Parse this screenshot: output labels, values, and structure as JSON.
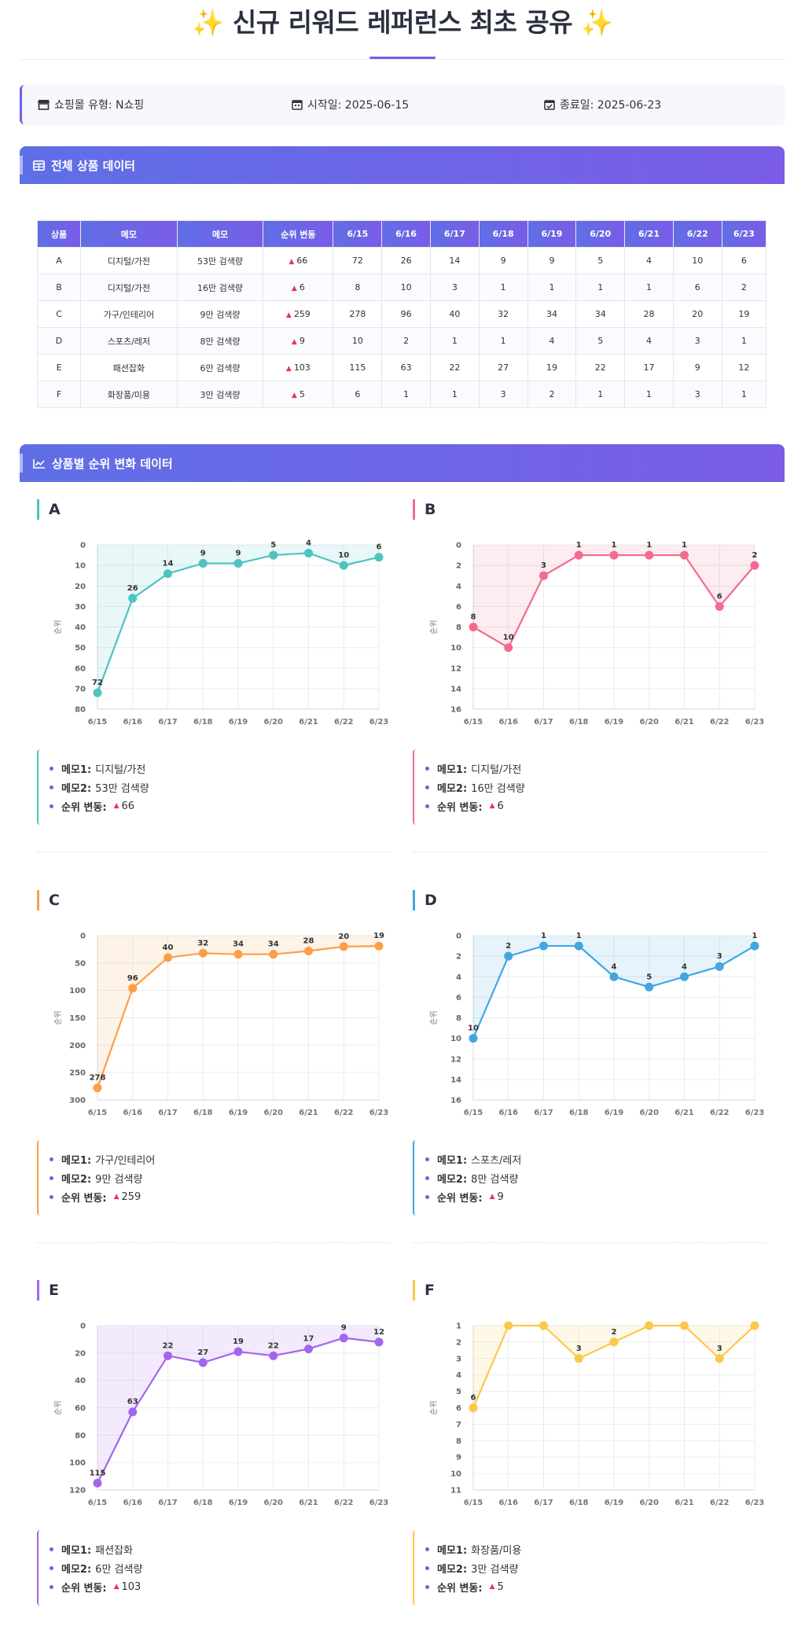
{
  "title": "✨ 신규 리워드 레퍼런스 최초 공유 ✨",
  "info": {
    "mall_label": "쇼핑몰 유형: N쇼핑",
    "start_label": "시작일: 2025-06-15",
    "end_label": "종료일: 2025-06-23"
  },
  "sections": {
    "table": "전체 상품 데이터",
    "charts": "상품별 순위 변화 데이터"
  },
  "table": {
    "headers": [
      "상품",
      "메모",
      "메모",
      "순위 변동",
      "6/15",
      "6/16",
      "6/17",
      "6/18",
      "6/19",
      "6/20",
      "6/21",
      "6/22",
      "6/23"
    ],
    "rows": [
      {
        "product": "A",
        "memo1": "디지털/가전",
        "memo2": "53만 검색량",
        "change": "66",
        "ranks": [
          "72",
          "26",
          "14",
          "9",
          "9",
          "5",
          "4",
          "10",
          "6"
        ]
      },
      {
        "product": "B",
        "memo1": "디지털/가전",
        "memo2": "16만 검색량",
        "change": "6",
        "ranks": [
          "8",
          "10",
          "3",
          "1",
          "1",
          "1",
          "1",
          "6",
          "2"
        ]
      },
      {
        "product": "C",
        "memo1": "가구/인테리어",
        "memo2": "9만 검색량",
        "change": "259",
        "ranks": [
          "278",
          "96",
          "40",
          "32",
          "34",
          "34",
          "28",
          "20",
          "19"
        ]
      },
      {
        "product": "D",
        "memo1": "스포츠/레저",
        "memo2": "8만 검색량",
        "change": "9",
        "ranks": [
          "10",
          "2",
          "1",
          "1",
          "4",
          "5",
          "4",
          "3",
          "1"
        ]
      },
      {
        "product": "E",
        "memo1": "패션잡화",
        "memo2": "6만 검색량",
        "change": "103",
        "ranks": [
          "115",
          "63",
          "22",
          "27",
          "19",
          "22",
          "17",
          "9",
          "12"
        ]
      },
      {
        "product": "F",
        "memo1": "화장품/미용",
        "memo2": "3만 검색량",
        "change": "5",
        "ranks": [
          "6",
          "1",
          "1",
          "3",
          "2",
          "1",
          "1",
          "3",
          "1"
        ]
      }
    ]
  },
  "memo_labels": {
    "memo1": "메모1:",
    "memo2": "메모2:",
    "change": "순위 변동:"
  },
  "chart_data": [
    {
      "type": "line",
      "title": "A",
      "color": "#4cc4c0",
      "x": [
        "6/15",
        "6/16",
        "6/17",
        "6/18",
        "6/19",
        "6/20",
        "6/21",
        "6/22",
        "6/23"
      ],
      "values": [
        72,
        26,
        14,
        9,
        9,
        5,
        4,
        10,
        6
      ],
      "ylabel": "순위",
      "ylim": [
        0,
        80
      ],
      "yticks": [
        0,
        10,
        20,
        30,
        40,
        50,
        60,
        70,
        80
      ],
      "y_inverted": true,
      "grid": true
    },
    {
      "type": "line",
      "title": "B",
      "color": "#f36b8d",
      "x": [
        "6/15",
        "6/16",
        "6/17",
        "6/18",
        "6/19",
        "6/20",
        "6/21",
        "6/22",
        "6/23"
      ],
      "values": [
        8,
        10,
        3,
        1,
        1,
        1,
        1,
        6,
        2
      ],
      "ylabel": "순위",
      "ylim": [
        0,
        16
      ],
      "yticks": [
        0,
        2,
        4,
        6,
        8,
        10,
        12,
        14,
        16
      ],
      "y_inverted": true,
      "grid": true
    },
    {
      "type": "line",
      "title": "C",
      "color": "#fb9f47",
      "x": [
        "6/15",
        "6/16",
        "6/17",
        "6/18",
        "6/19",
        "6/20",
        "6/21",
        "6/22",
        "6/23"
      ],
      "values": [
        278,
        96,
        40,
        32,
        34,
        34,
        28,
        20,
        19
      ],
      "ylabel": "순위",
      "ylim": [
        0,
        300
      ],
      "yticks": [
        0,
        50,
        100,
        150,
        200,
        250,
        300
      ],
      "y_inverted": true,
      "grid": true
    },
    {
      "type": "line",
      "title": "D",
      "color": "#41a6e2",
      "x": [
        "6/15",
        "6/16",
        "6/17",
        "6/18",
        "6/19",
        "6/20",
        "6/21",
        "6/22",
        "6/23"
      ],
      "values": [
        10,
        2,
        1,
        1,
        4,
        5,
        4,
        3,
        1
      ],
      "ylabel": "순위",
      "ylim": [
        0,
        16
      ],
      "yticks": [
        0,
        2,
        4,
        6,
        8,
        10,
        12,
        14,
        16
      ],
      "y_inverted": true,
      "grid": true
    },
    {
      "type": "line",
      "title": "E",
      "color": "#a365ee",
      "x": [
        "6/15",
        "6/16",
        "6/17",
        "6/18",
        "6/19",
        "6/20",
        "6/21",
        "6/22",
        "6/23"
      ],
      "values": [
        115,
        63,
        22,
        27,
        19,
        22,
        17,
        9,
        12
      ],
      "ylabel": "순위",
      "ylim": [
        0,
        120
      ],
      "yticks": [
        0,
        20,
        40,
        60,
        80,
        100,
        120
      ],
      "y_inverted": true,
      "grid": true
    },
    {
      "type": "line",
      "title": "F",
      "color": "#fbc84a",
      "x": [
        "6/15",
        "6/16",
        "6/17",
        "6/18",
        "6/19",
        "6/20",
        "6/21",
        "6/22",
        "6/23"
      ],
      "values": [
        6,
        1,
        1,
        3,
        2,
        1,
        1,
        3,
        1
      ],
      "ylabel": "순위",
      "ylim": [
        1,
        11
      ],
      "yticks": [
        1,
        2,
        3,
        4,
        5,
        6,
        7,
        8,
        9,
        10,
        11
      ],
      "y_inverted": true,
      "grid": true
    }
  ]
}
